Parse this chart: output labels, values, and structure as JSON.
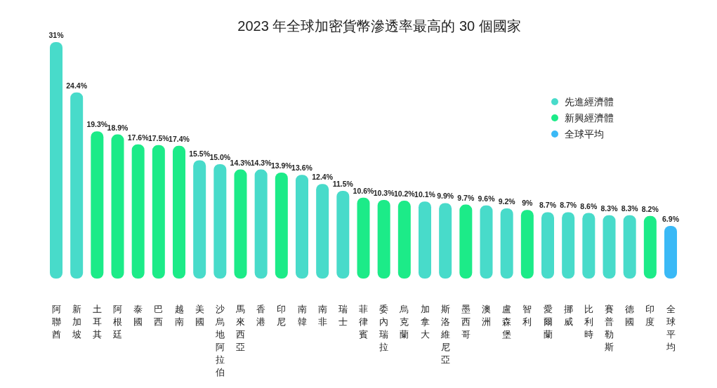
{
  "chart_data": {
    "type": "bar",
    "title": "2023 年全球加密貨幣滲透率最高的 30 個國家",
    "categories": [
      "阿聯酋",
      "新加坡",
      "土耳其",
      "阿根廷",
      "泰國",
      "巴西",
      "越南",
      "美國",
      "沙烏地阿拉伯",
      "馬來西亞",
      "香港",
      "印尼",
      "南韓",
      "南非",
      "瑞士",
      "菲律賓",
      "委內瑞拉",
      "烏克蘭",
      "加拿大",
      "斯洛維尼亞",
      "墨西哥",
      "澳洲",
      "盧森堡",
      "智利",
      "愛爾蘭",
      "挪威",
      "比利時",
      "賽普勒斯",
      "德國",
      "印度",
      "全球平均"
    ],
    "series": [
      {
        "name": "先進經濟體",
        "color": "#48dbca",
        "values": [
          31,
          24.4,
          null,
          null,
          null,
          null,
          null,
          15.5,
          15.0,
          null,
          14.3,
          null,
          13.6,
          12.4,
          11.5,
          null,
          null,
          null,
          10.1,
          9.9,
          null,
          9.6,
          9.2,
          null,
          8.7,
          8.7,
          8.6,
          8.3,
          8.3,
          null,
          null
        ],
        "value_labels": [
          "31%",
          "24.4%",
          null,
          null,
          null,
          null,
          null,
          "15.5%",
          "15.0%",
          null,
          "14.3%",
          null,
          "13.6%",
          "12.4%",
          "11.5%",
          null,
          null,
          null,
          "10.1%",
          "9.9%",
          null,
          "9.6%",
          "9.2%",
          null,
          "8.7%",
          "8.7%",
          "8.6%",
          "8.3%",
          "8.3%",
          null,
          null
        ]
      },
      {
        "name": "新興經濟體",
        "color": "#1ceb88",
        "values": [
          null,
          null,
          19.3,
          18.9,
          17.6,
          17.5,
          17.4,
          null,
          null,
          14.3,
          null,
          13.9,
          null,
          null,
          null,
          10.6,
          10.3,
          10.2,
          null,
          null,
          9.7,
          null,
          null,
          9,
          null,
          null,
          null,
          null,
          null,
          8.2,
          null
        ],
        "value_labels": [
          null,
          null,
          "19.3%",
          "18.9%",
          "17.6%",
          "17.5%",
          "17.4%",
          null,
          null,
          "14.3%",
          null,
          "13.9%",
          null,
          null,
          null,
          "10.6%",
          "10.3%",
          "10.2%",
          null,
          null,
          "9.7%",
          null,
          null,
          "9%",
          null,
          null,
          null,
          null,
          null,
          "8.2%",
          null
        ]
      },
      {
        "name": "全球平均",
        "color": "#3ab9f6",
        "values": [
          null,
          null,
          null,
          null,
          null,
          null,
          null,
          null,
          null,
          null,
          null,
          null,
          null,
          null,
          null,
          null,
          null,
          null,
          null,
          null,
          null,
          null,
          null,
          null,
          null,
          null,
          null,
          null,
          null,
          null,
          6.9
        ],
        "value_labels": [
          null,
          null,
          null,
          null,
          null,
          null,
          null,
          null,
          null,
          null,
          null,
          null,
          null,
          null,
          null,
          null,
          null,
          null,
          null,
          null,
          null,
          null,
          null,
          null,
          null,
          null,
          null,
          null,
          null,
          null,
          "6.9%"
        ]
      }
    ],
    "legend": "top right"
  }
}
